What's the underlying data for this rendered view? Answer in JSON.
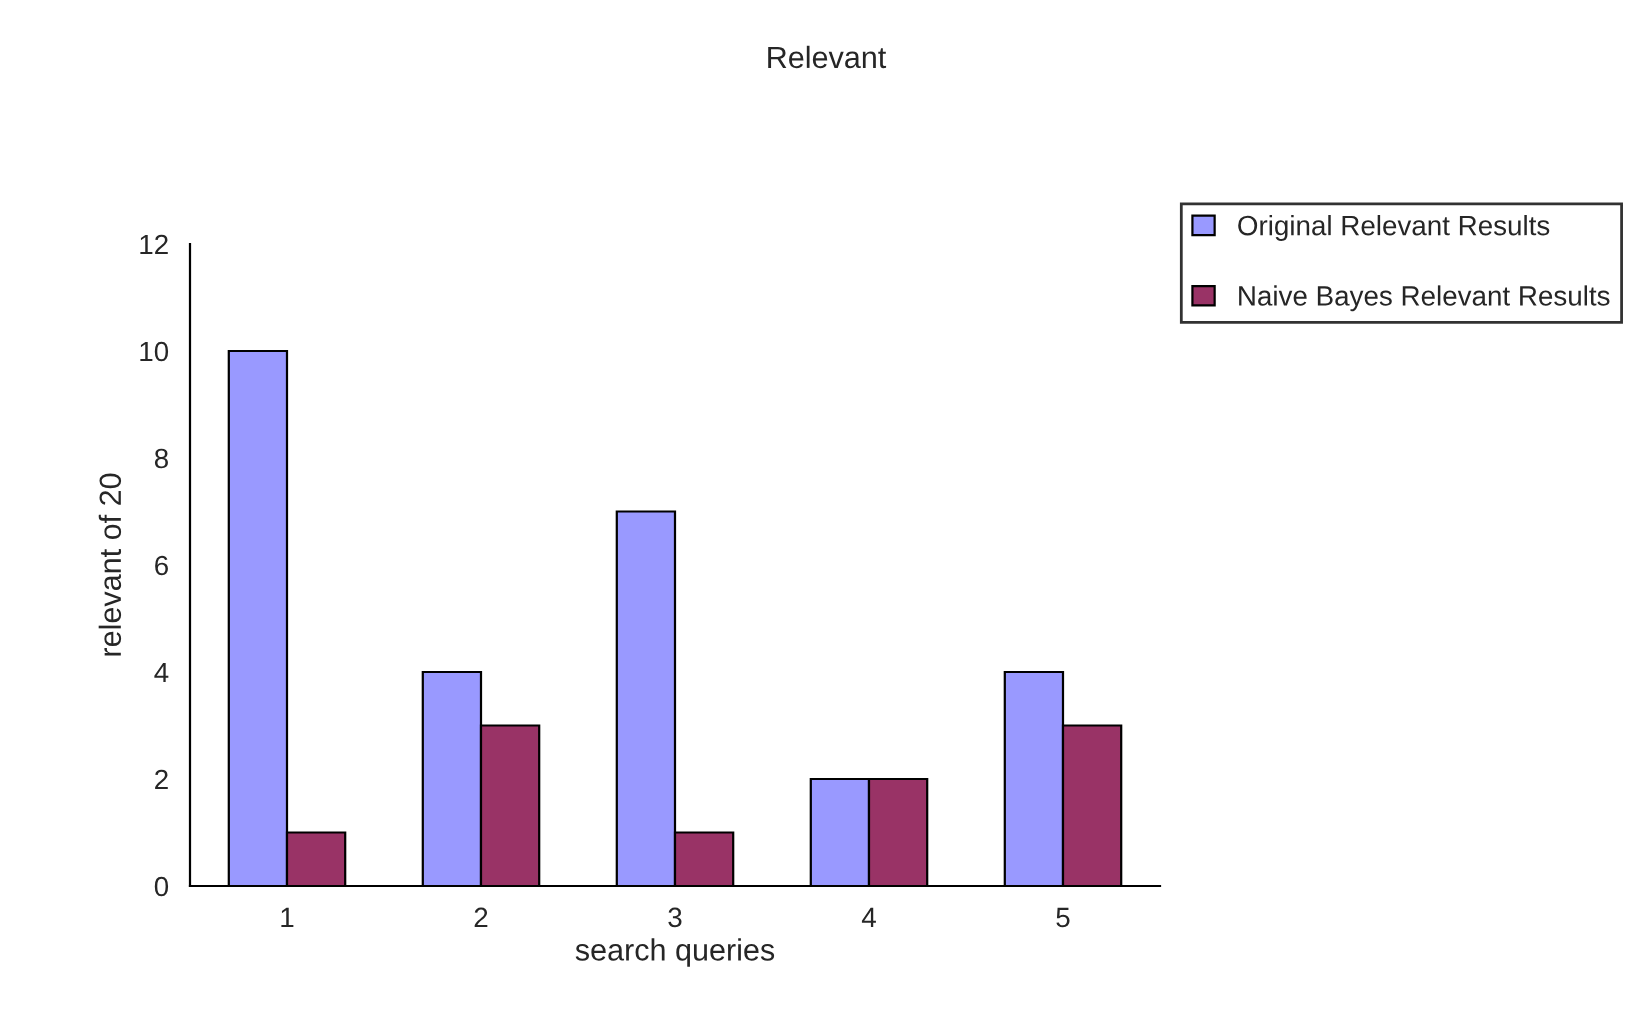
{
  "chart_data": {
    "type": "bar",
    "title": "Relevant",
    "xlabel": "search queries",
    "ylabel": "relevant of 20",
    "categories": [
      "1",
      "2",
      "3",
      "4",
      "5"
    ],
    "series": [
      {
        "name": "Original Relevant Results",
        "color": "#9999ff",
        "values": [
          10,
          4,
          7,
          2,
          4
        ]
      },
      {
        "name": "Naive Bayes Relevant Results",
        "color": "#993366",
        "values": [
          1,
          3,
          1,
          2,
          3
        ]
      }
    ],
    "ylim": [
      0,
      12
    ],
    "yticks": [
      0,
      2,
      4,
      6,
      8,
      10,
      12
    ],
    "grid": false,
    "legend": "top right"
  }
}
